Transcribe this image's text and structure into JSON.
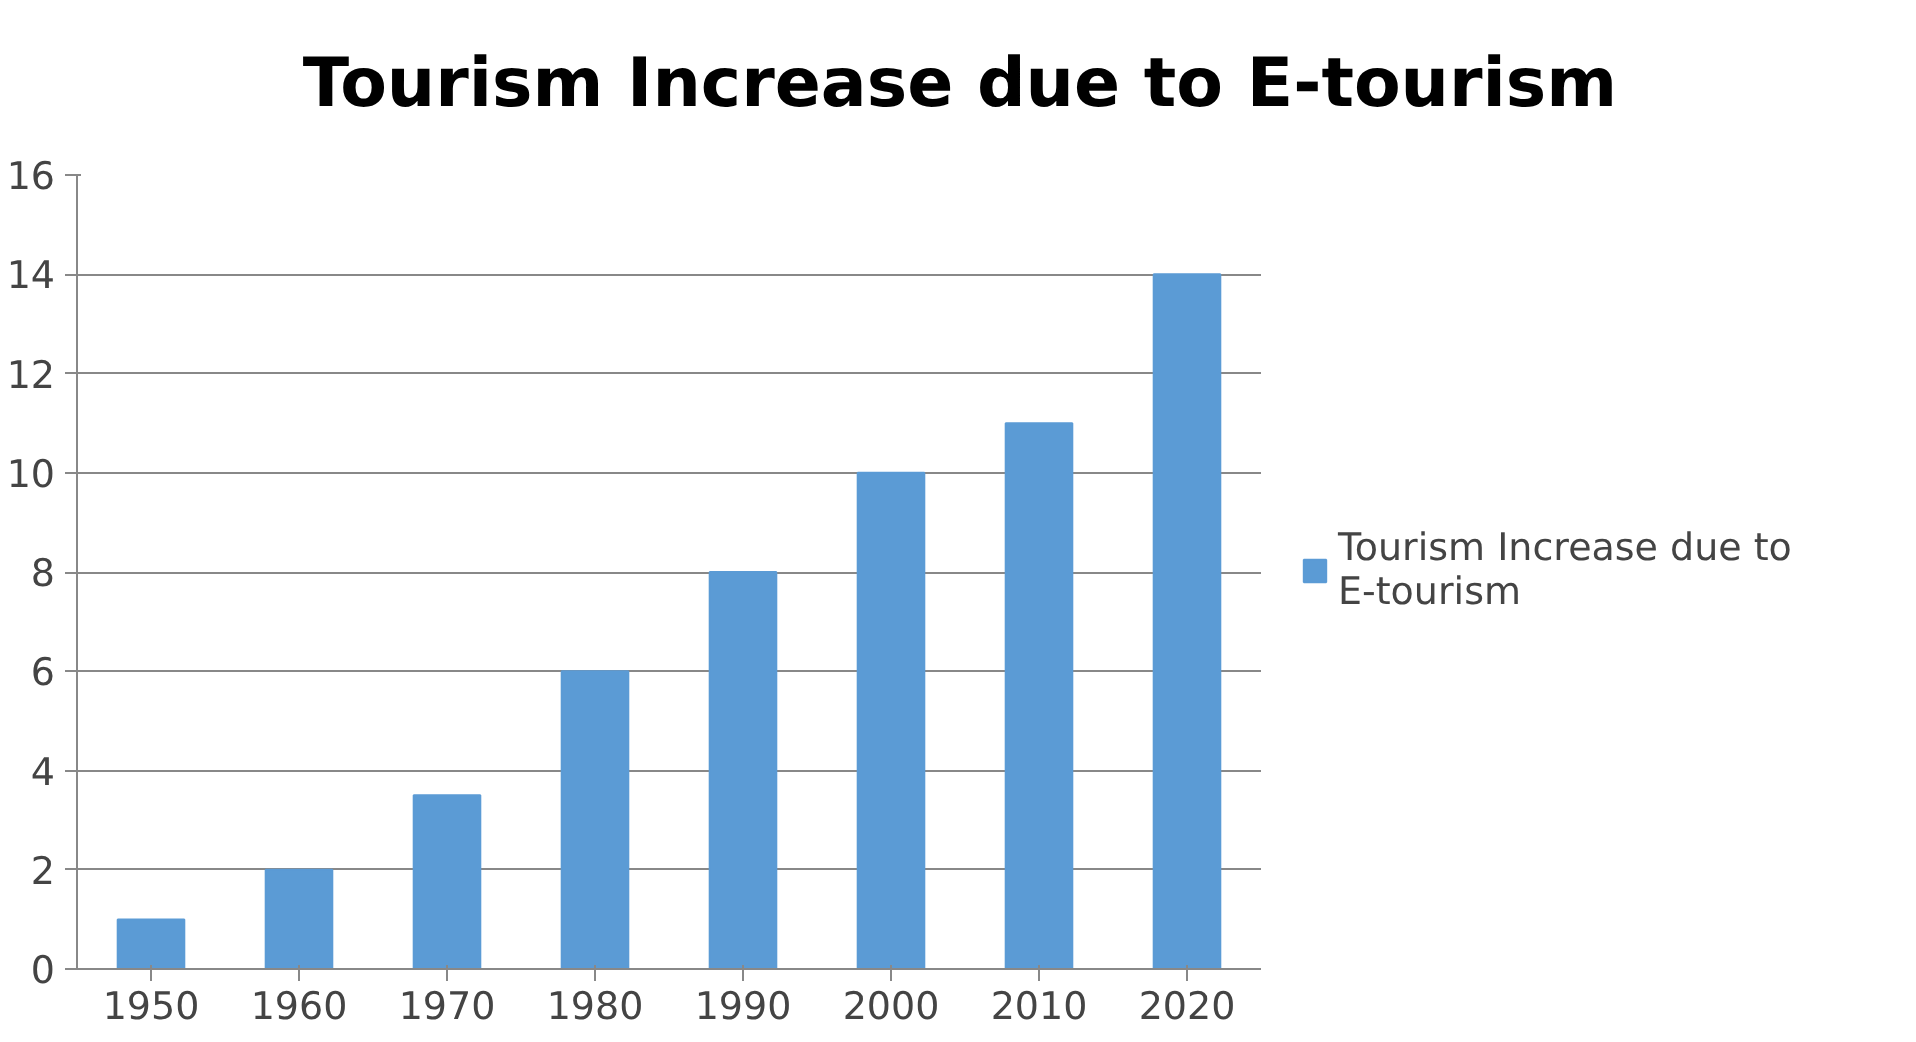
{
  "chart_data": {
    "type": "bar",
    "title": "Tourism Increase due to E-tourism",
    "categories": [
      "1950",
      "1960",
      "1970",
      "1980",
      "1990",
      "2000",
      "2010",
      "2020"
    ],
    "series": [
      {
        "name": "Tourism Increase due to E-tourism",
        "color": "#5b9bd5",
        "values": [
          1,
          2,
          3.5,
          6,
          8,
          10,
          11,
          14
        ]
      }
    ],
    "ylim": [
      0,
      16
    ],
    "yticks": [
      0,
      2,
      4,
      6,
      8,
      10,
      12,
      14,
      16
    ],
    "grid": "y",
    "legend": "right"
  }
}
